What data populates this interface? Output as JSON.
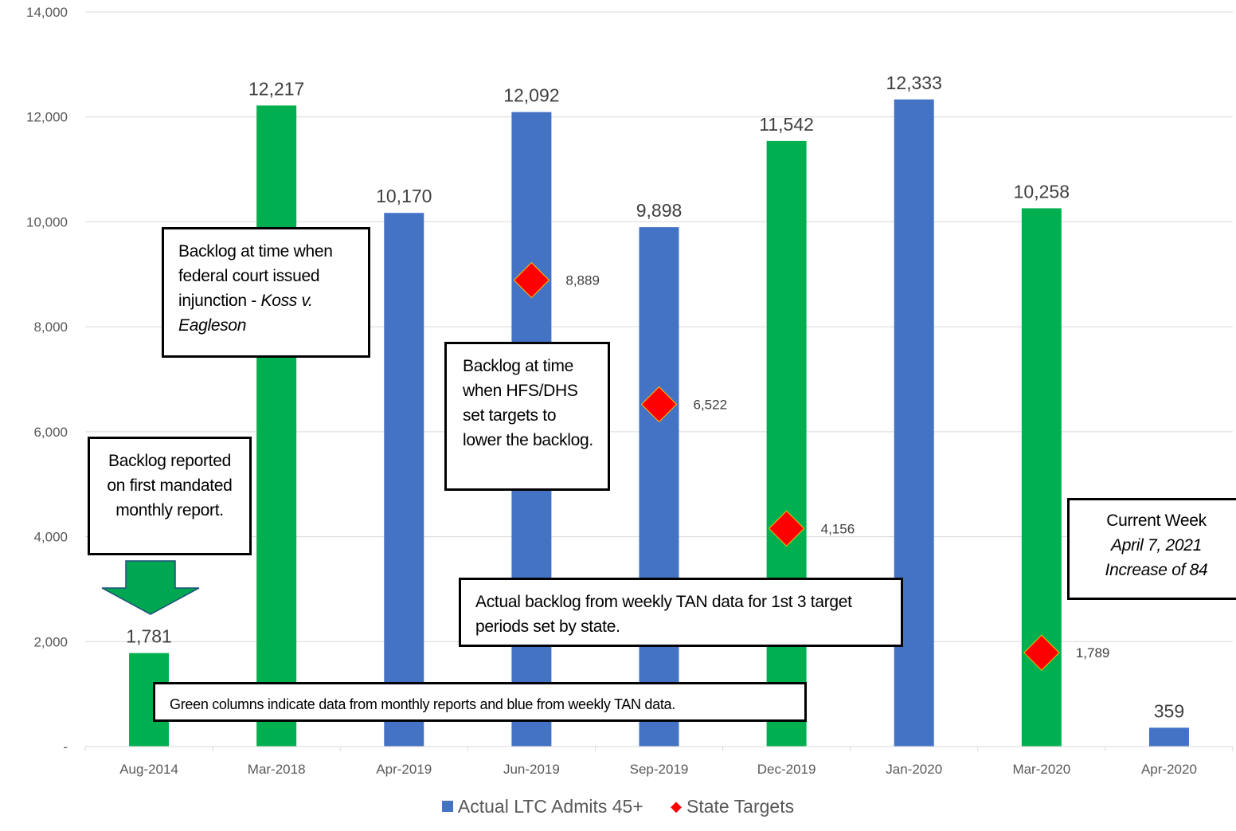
{
  "chart_data": {
    "type": "bar",
    "categories": [
      "Aug-2014",
      "Mar-2018",
      "Apr-2019",
      "Jun-2019",
      "Sep-2019",
      "Dec-2019",
      "Jan-2020",
      "Mar-2020",
      "Apr-2020"
    ],
    "series": [
      {
        "name": "Actual LTC Admits 45+",
        "type": "bar",
        "values": [
          1781,
          12217,
          10170,
          12092,
          9898,
          11542,
          12333,
          10258,
          359
        ],
        "value_labels": [
          "1,781",
          "12,217",
          "10,170",
          "12,092",
          "9,898",
          "11,542",
          "12,333",
          "10,258",
          "359"
        ],
        "bar_colors": [
          "#00b050",
          "#00b050",
          "#4472c4",
          "#4472c4",
          "#4472c4",
          "#00b050",
          "#4472c4",
          "#00b050",
          "#4472c4"
        ]
      },
      {
        "name": "State Targets",
        "type": "marker",
        "marker": "diamond",
        "color": "#ff0000",
        "values": [
          null,
          null,
          null,
          8889,
          6522,
          4156,
          null,
          1789,
          null
        ],
        "value_labels": [
          null,
          null,
          null,
          "8,889",
          "6,522",
          "4,156",
          null,
          "1,789",
          null
        ]
      }
    ],
    "ylim": [
      0,
      14000
    ],
    "yticks": [
      0,
      2000,
      4000,
      6000,
      8000,
      10000,
      12000,
      14000
    ],
    "ytick_labels": [
      "-",
      "2,000",
      "4,000",
      "6,000",
      "8,000",
      "10,000",
      "12,000",
      "14,000"
    ],
    "grid": true,
    "legend_position": "bottom",
    "colors": {
      "green": "#00b050",
      "blue": "#4472c4",
      "target": "#ff0000",
      "arrow": "#00a651"
    }
  },
  "annotations": {
    "first_report": {
      "text": "Backlog reported on first mandated monthly report."
    },
    "injunction": {
      "text": "Backlog at time when federal court issued injunction - ",
      "italic": "Koss v. Eagleson"
    },
    "targets_set": {
      "text": "Backlog at time when HFS/DHS set targets to lower the backlog."
    },
    "weekly_tan": {
      "text": "Actual backlog from weekly TAN data for 1st 3 target periods set by state."
    },
    "color_note": {
      "text": "Green columns indicate data from monthly reports and blue from weekly TAN data."
    },
    "current_week": {
      "line1": "Current Week",
      "line2": "April 7, 2021",
      "line3": "Increase of 84"
    }
  },
  "legend": {
    "actual": "Actual LTC Admits 45+",
    "targets": "State Targets"
  }
}
